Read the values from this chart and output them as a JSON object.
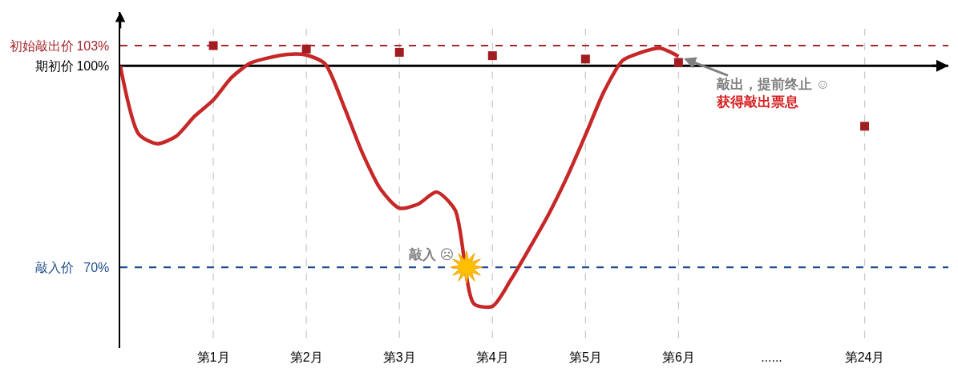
{
  "chart_data": {
    "type": "line",
    "categories": [
      null,
      null,
      null,
      null,
      null,
      "第1月",
      null,
      null,
      null,
      null,
      "第2月",
      null,
      null,
      null,
      null,
      "第3月",
      null,
      null,
      null,
      null,
      "第4月",
      null,
      null,
      null,
      null,
      "第5月",
      null,
      null,
      null,
      null,
      "第6月",
      null,
      null,
      null,
      null,
      "......",
      null,
      null,
      null,
      null,
      "第24月",
      null,
      null,
      null,
      null
    ],
    "ylim": [
      58,
      108
    ],
    "yticks": [
      {
        "value": 70,
        "label": "70%"
      },
      {
        "value": 100,
        "label": "100%"
      },
      {
        "value": 103,
        "label": "103%"
      }
    ],
    "grid": false,
    "ref_lines": [
      {
        "axis": "y",
        "value": 103,
        "label": "初始敲出价",
        "color": "#a5262b",
        "line_style": "dashed"
      },
      {
        "axis": "y",
        "value": 100,
        "label": "期初价",
        "color": "#000000",
        "line_style": "solid"
      },
      {
        "axis": "y",
        "value": 70,
        "label": "敲入价",
        "color": "#1f4e8c",
        "line_style": "dashed"
      },
      {
        "axis": "x",
        "value": "第1月",
        "color": "#c8c8d0",
        "line_style": "dashed"
      },
      {
        "axis": "x",
        "value": "第2月",
        "color": "#c8c8d0",
        "line_style": "dashed"
      },
      {
        "axis": "x",
        "value": "第3月",
        "color": "#c8c8d0",
        "line_style": "dashed"
      },
      {
        "axis": "x",
        "value": "第4月",
        "color": "#c8c8d0",
        "line_style": "dashed"
      },
      {
        "axis": "x",
        "value": "第5月",
        "color": "#c8c8d0",
        "line_style": "dashed"
      },
      {
        "axis": "x",
        "value": "第6月",
        "color": "#c8c8d0",
        "line_style": "dashed"
      },
      {
        "axis": "x",
        "value": "第24月",
        "color": "#c8c8d0",
        "line_style": "dashed"
      }
    ],
    "annotations": [
      {
        "text": "敲入 ☹",
        "y": 70
      },
      {
        "text": "敲出，提前终止 ☺\n获得敲出票息",
        "x": "第6月",
        "y": 101.4
      }
    ],
    "series": [
      {
        "color": "#c62828",
        "marker": "none",
        "line_style": "solid",
        "values": [
          100,
          89.8,
          88.4,
          89.5,
          92.5,
          94.9,
          98.3,
          100.4,
          101.2,
          101.7,
          101.6,
          100.3,
          94.1,
          87.1,
          81.6,
          78.8,
          79.4,
          81.2,
          78.5,
          64.6,
          64.2,
          68.2,
          72.9,
          77.8,
          83.4,
          89.7,
          96.2,
          100.8,
          102.0,
          102.6,
          101.4,
          null,
          null,
          null,
          null,
          null,
          null,
          null,
          null,
          null,
          null,
          null,
          null,
          null,
          null
        ]
      },
      {
        "type": "scatter",
        "color": "#a11d21",
        "marker": "square",
        "values": [
          null,
          null,
          null,
          null,
          null,
          103,
          null,
          null,
          null,
          null,
          102.5,
          null,
          null,
          null,
          null,
          102,
          null,
          null,
          null,
          null,
          101.5,
          null,
          null,
          null,
          null,
          101,
          null,
          null,
          null,
          null,
          100.5,
          null,
          null,
          null,
          null,
          null,
          null,
          null,
          null,
          null,
          91,
          null,
          null,
          null,
          null
        ]
      }
    ]
  }
}
